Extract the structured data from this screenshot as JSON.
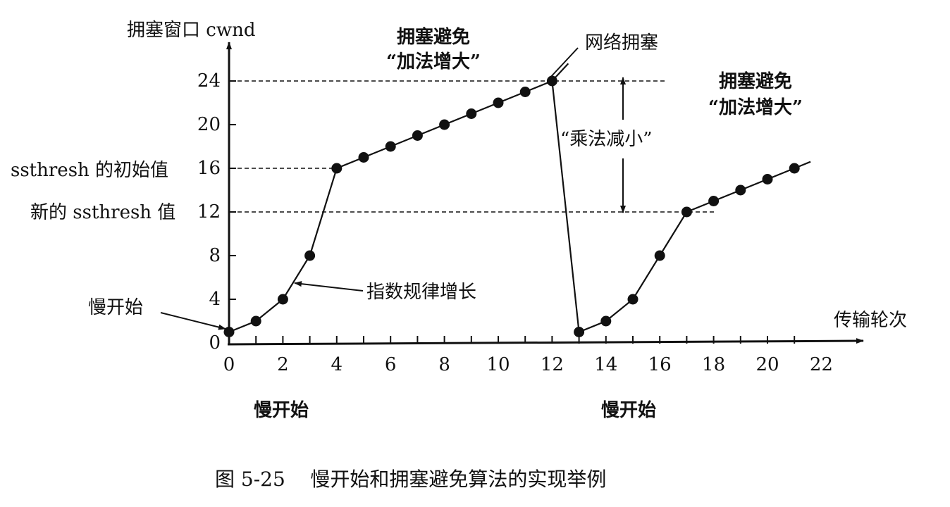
{
  "chart_data": {
    "type": "line",
    "title": "图 5-25 慢开始和拥塞避免算法的实现举例",
    "xlabel": "传输轮次",
    "ylabel": "拥塞窗口 cwnd",
    "xlim": [
      0,
      22
    ],
    "ylim": [
      0,
      24
    ],
    "x_ticks": [
      0,
      2,
      4,
      6,
      8,
      10,
      12,
      14,
      16,
      18,
      20,
      22
    ],
    "y_ticks": [
      0,
      4,
      8,
      12,
      16,
      20,
      24
    ],
    "grid": false,
    "x": [
      0,
      1,
      2,
      3,
      4,
      5,
      6,
      7,
      8,
      9,
      10,
      11,
      12,
      13,
      14,
      15,
      16,
      17,
      18,
      19,
      20,
      21
    ],
    "series": [
      {
        "name": "cwnd",
        "values": [
          1,
          2,
          4,
          8,
          16,
          17,
          18,
          19,
          20,
          21,
          22,
          23,
          24,
          1,
          2,
          4,
          8,
          12,
          13,
          14,
          15,
          16
        ]
      }
    ],
    "reference_lines": [
      {
        "y": 24,
        "style": "dashed"
      },
      {
        "y": 16,
        "style": "dashed",
        "label": "ssthresh 的初始值"
      },
      {
        "y": 12,
        "style": "dashed",
        "label": "新的 ssthresh 值"
      }
    ],
    "annotations": [
      "拥塞避免 “加法增大”",
      "网络拥塞",
      "“乘法减小”",
      "拥塞避免 “加法增大”",
      "指数规律增长",
      "慢开始",
      "慢开始",
      "慢开始"
    ]
  },
  "labels": {
    "y_axis_title": "拥塞窗口 cwnd",
    "x_axis_title": "传输轮次",
    "ssthresh_initial": "ssthresh 的初始值",
    "ssthresh_new": "新的 ssthresh 值",
    "ca1_line1": "拥塞避免",
    "ca1_line2": "“加法增大”",
    "ca2_line1": "拥塞避免",
    "ca2_line2": "“加法增大”",
    "congestion": "网络拥塞",
    "mult_decrease": "“乘法减小”",
    "exponential": "指数规律增长",
    "slow_start_left": "慢开始",
    "slow_start_bottom1": "慢开始",
    "slow_start_bottom2": "慢开始",
    "caption": "图 5-25    慢开始和拥塞避免算法的实现举例"
  },
  "y_tick_labels": [
    "0",
    "4",
    "8",
    "12",
    "16",
    "20",
    "24"
  ],
  "x_tick_labels": [
    "0",
    "2",
    "4",
    "6",
    "8",
    "10",
    "12",
    "14",
    "16",
    "18",
    "20",
    "22"
  ]
}
